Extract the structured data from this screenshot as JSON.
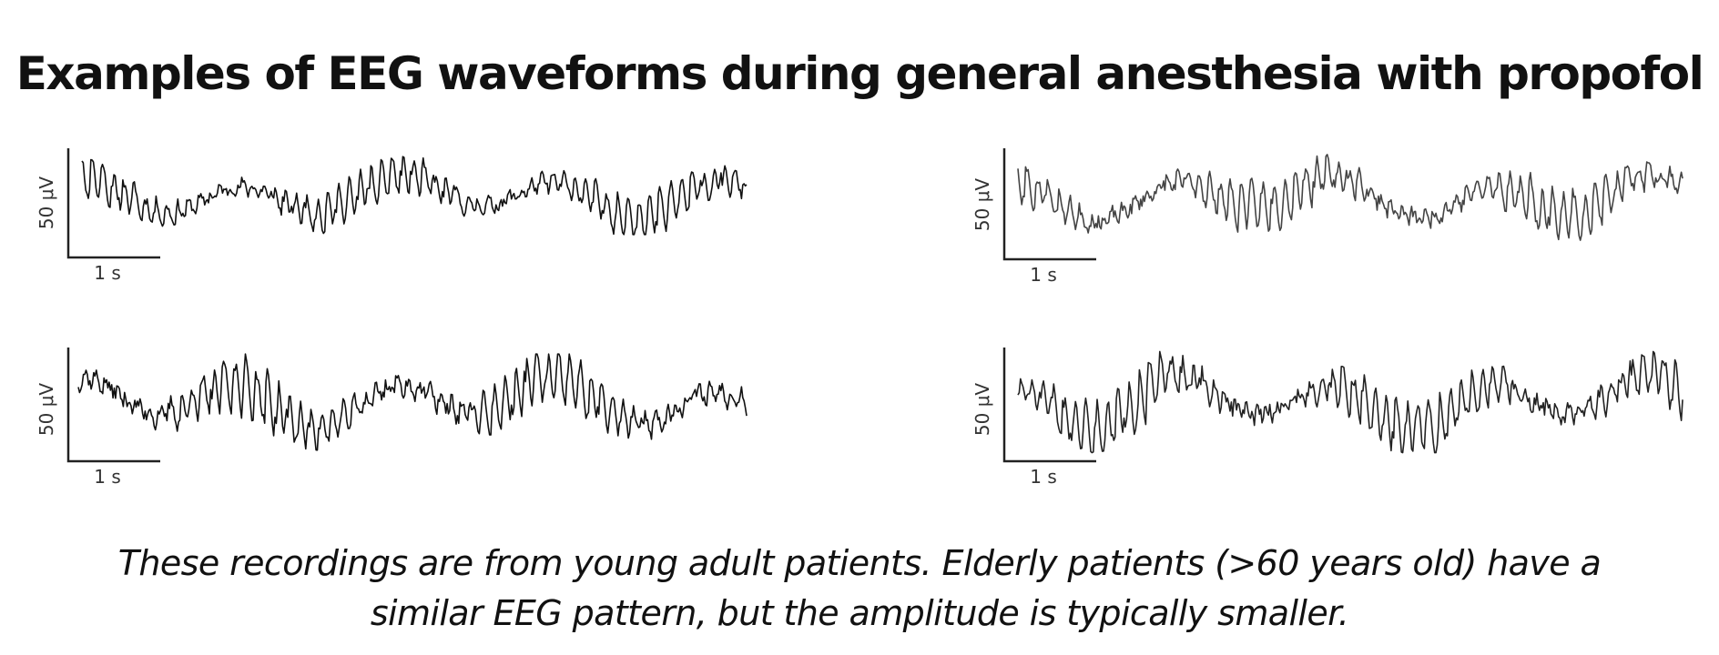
{
  "title": "Examples of EEG waveforms during general anesthesia with propofol",
  "scale_bar": {
    "amplitude_label": "50 μV",
    "time_label": "1 s"
  },
  "panels": [
    {
      "id": "top-left",
      "seed": 11,
      "trace_color": "#111111"
    },
    {
      "id": "top-right",
      "seed": 23,
      "trace_color": "#444444"
    },
    {
      "id": "bottom-left",
      "seed": 37,
      "trace_color": "#111111"
    },
    {
      "id": "bottom-right",
      "seed": 51,
      "trace_color": "#222222"
    }
  ],
  "caption": {
    "line1": "These recordings are from young adult patients. Elderly patients (>60 years old) have a",
    "line2": "similar EEG pattern, but the amplitude is typically smaller."
  }
}
